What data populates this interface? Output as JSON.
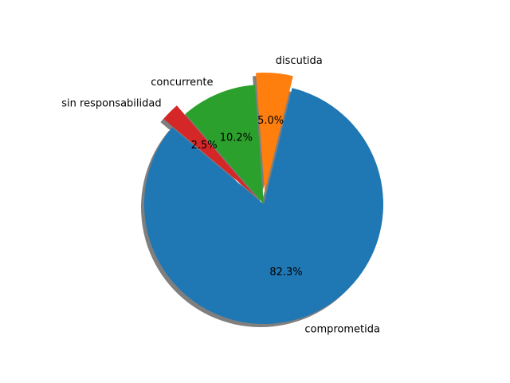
{
  "chart_data": {
    "type": "pie",
    "title": "",
    "slices": [
      {
        "label": "comprometida",
        "value": 82.3,
        "pct_label": "82.3%",
        "color": "#1f77b4",
        "exploded": false
      },
      {
        "label": "discutida",
        "value": 5.0,
        "pct_label": "5.0%",
        "color": "#ff7f0e",
        "exploded": true
      },
      {
        "label": "concurrente",
        "value": 10.2,
        "pct_label": "10.2%",
        "color": "#2ca02c",
        "exploded": false
      },
      {
        "label": "sin responsabilidad",
        "value": 2.5,
        "pct_label": "2.5%",
        "color": "#d62728",
        "exploded": true
      }
    ],
    "shadow": true,
    "legend": "none"
  }
}
